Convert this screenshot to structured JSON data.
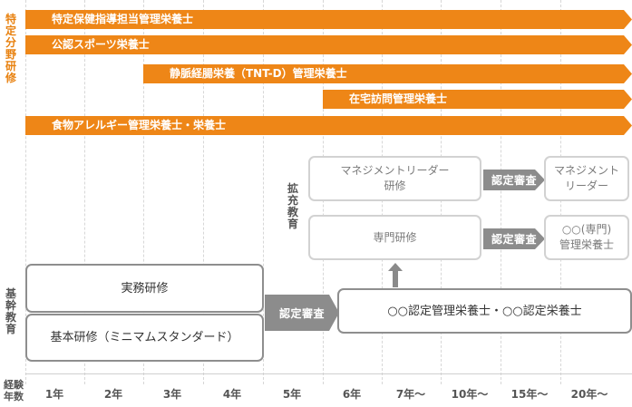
{
  "labels": {
    "specialized": "特定分野研修",
    "expanded": "拡充教育",
    "basic": "基幹教育",
    "experience": "経験年数"
  },
  "specialty_bars": [
    "特定保健指導担当管理栄養士",
    "公認スポーツ栄養士",
    "静脈経腸栄養（TNT-D）管理栄養士",
    "在宅訪問管理栄養士",
    "食物アレルギー管理栄養士・栄養士"
  ],
  "expanded_track": {
    "management_training": "マネジメントリーダー\n研修",
    "specialist_training": "専門研修",
    "cert_review_top": "認定審査",
    "cert_review_mid": "認定審査",
    "management_leader": "マネジメント\nリーダー",
    "specialist_dietitian": "○○(専門)\n管理栄養士"
  },
  "basic_track": {
    "practical_training": "実務研修",
    "basic_training": "基本研修（ミニマムスタンダード）",
    "cert_review": "認定審査",
    "certified_dietitian": "○○認定管理栄養士・○○認定栄養士"
  },
  "x_axis": [
    "1年",
    "2年",
    "3年",
    "4年",
    "5年",
    "6年",
    "7年～",
    "10年～",
    "15年～",
    "20年～"
  ],
  "colors": {
    "bar_orange": "#ee8617",
    "label_orange": "#e8810f",
    "cert_gray": "#8c8c8c"
  }
}
